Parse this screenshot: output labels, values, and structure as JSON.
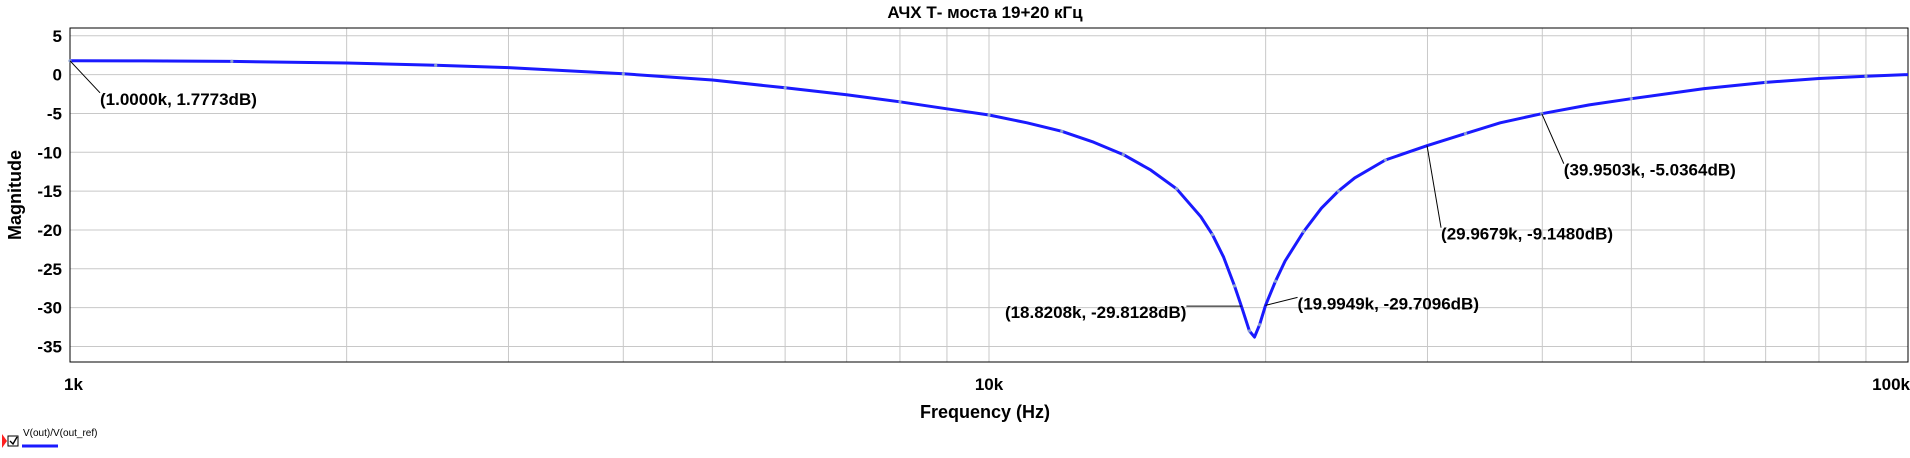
{
  "chart_data": {
    "type": "line",
    "title": "АЧХ Т- моста 19+20 кГц",
    "xlabel": "Frequency (Hz)",
    "ylabel": "Magnitude",
    "xscale": "log",
    "xlim": [
      1000,
      100000
    ],
    "ylim": [
      -37,
      6
    ],
    "grid": true,
    "x_ticks": [
      {
        "value": 1000,
        "label": "1k"
      },
      {
        "value": 10000,
        "label": "10k"
      },
      {
        "value": 100000,
        "label": "100k"
      }
    ],
    "y_ticks": [
      {
        "value": 5,
        "label": "5"
      },
      {
        "value": 0,
        "label": "0"
      },
      {
        "value": -5,
        "label": "-5"
      },
      {
        "value": -10,
        "label": "-10"
      },
      {
        "value": -15,
        "label": "-15"
      },
      {
        "value": -20,
        "label": "-20"
      },
      {
        "value": -25,
        "label": "-25"
      },
      {
        "value": -30,
        "label": "-30"
      },
      {
        "value": -35,
        "label": "-35"
      }
    ],
    "series": [
      {
        "name": "V(out)/V(out_ref)",
        "color": "#1a1aff",
        "x": [
          1000,
          1200,
          1500,
          2000,
          2500,
          3000,
          4000,
          5000,
          6000,
          7000,
          8000,
          9000,
          10000,
          11000,
          12000,
          13000,
          14000,
          15000,
          16000,
          17000,
          17500,
          18000,
          18500,
          18820.8,
          19200,
          19450,
          19700,
          19994.9,
          20500,
          21000,
          22000,
          23000,
          24000,
          25000,
          27000,
          29967.9,
          33000,
          36000,
          39950.3,
          45000,
          50000,
          60000,
          70000,
          80000,
          90000,
          100000
        ],
        "y": [
          1.7773,
          1.77,
          1.7,
          1.5,
          1.2,
          0.9,
          0.1,
          -0.7,
          -1.7,
          -2.6,
          -3.5,
          -4.4,
          -5.2,
          -6.2,
          -7.3,
          -8.7,
          -10.3,
          -12.3,
          -14.7,
          -18.3,
          -20.6,
          -23.5,
          -27.2,
          -29.8128,
          -33.0,
          -33.8,
          -32.2,
          -29.7096,
          -26.6,
          -24.0,
          -20.2,
          -17.2,
          -15.0,
          -13.3,
          -11.0,
          -9.148,
          -7.6,
          -6.2,
          -5.0364,
          -3.9,
          -3.1,
          -1.8,
          -1.0,
          -0.5,
          -0.2,
          0.0
        ]
      }
    ],
    "annotations": [
      {
        "x": 1000,
        "y": 1.7773,
        "text": "(1.0000k, 1.7773dB)"
      },
      {
        "x": 18820.8,
        "y": -29.8128,
        "text": "(18.8208k, -29.8128dB)"
      },
      {
        "x": 19994.9,
        "y": -29.7096,
        "text": "(19.9949k, -29.7096dB)"
      },
      {
        "x": 29967.9,
        "y": -9.148,
        "text": "(29.9679k, -9.1480dB)"
      },
      {
        "x": 39950.3,
        "y": -5.0364,
        "text": "(39.9503k, -5.0364dB)"
      }
    ],
    "legend": {
      "position": "bottom-left",
      "label": "V(out)/V(out_ref)"
    }
  }
}
